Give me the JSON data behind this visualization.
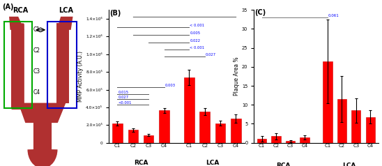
{
  "panel_B": {
    "rca_values": [
      220000.0,
      145000.0,
      85000.0,
      365000.0
    ],
    "rca_errors": [
      25000.0,
      18000.0,
      12000.0,
      30000.0
    ],
    "lca_values": [
      740000.0,
      350000.0,
      220000.0,
      275000.0
    ],
    "lca_errors": [
      85000.0,
      40000.0,
      28000.0,
      48000.0
    ],
    "ylabel": "MMP Activity (A.U.)",
    "ylim": [
      0,
      1500000.0
    ],
    "ytick_vals": [
      0,
      200000.0,
      400000.0,
      600000.0,
      800000.0,
      1000000.0,
      1200000.0,
      1400000.0
    ],
    "ytick_labels": [
      "0",
      "2.0×10⁵",
      "4.0×10⁵",
      "6.0×10⁵",
      "8.0×10⁵",
      "1.0×10⁶",
      "1.2×10⁶",
      "1.4×10⁶"
    ]
  },
  "panel_C": {
    "rca_values": [
      1.1,
      1.7,
      0.45,
      1.4
    ],
    "rca_errors": [
      0.75,
      0.85,
      0.25,
      0.6
    ],
    "lca_values": [
      21.5,
      11.5,
      8.5,
      6.8
    ],
    "lca_errors": [
      11.0,
      6.0,
      3.2,
      1.8
    ],
    "ylabel": "Plaque Area %",
    "ylim": [
      0,
      35
    ],
    "ytick_vals": [
      0,
      5,
      10,
      15,
      20,
      25,
      30,
      35
    ],
    "ytick_labels": [
      "0",
      "5",
      "10",
      "15",
      "20",
      "25",
      "30",
      "35"
    ]
  },
  "bar_color": "#FF0000",
  "categories": [
    "C1",
    "C2",
    "C3",
    "C4"
  ],
  "artery_color": "#B03030",
  "green_rect_color": "#00AA00",
  "blue_rect_color": "#0000CC"
}
